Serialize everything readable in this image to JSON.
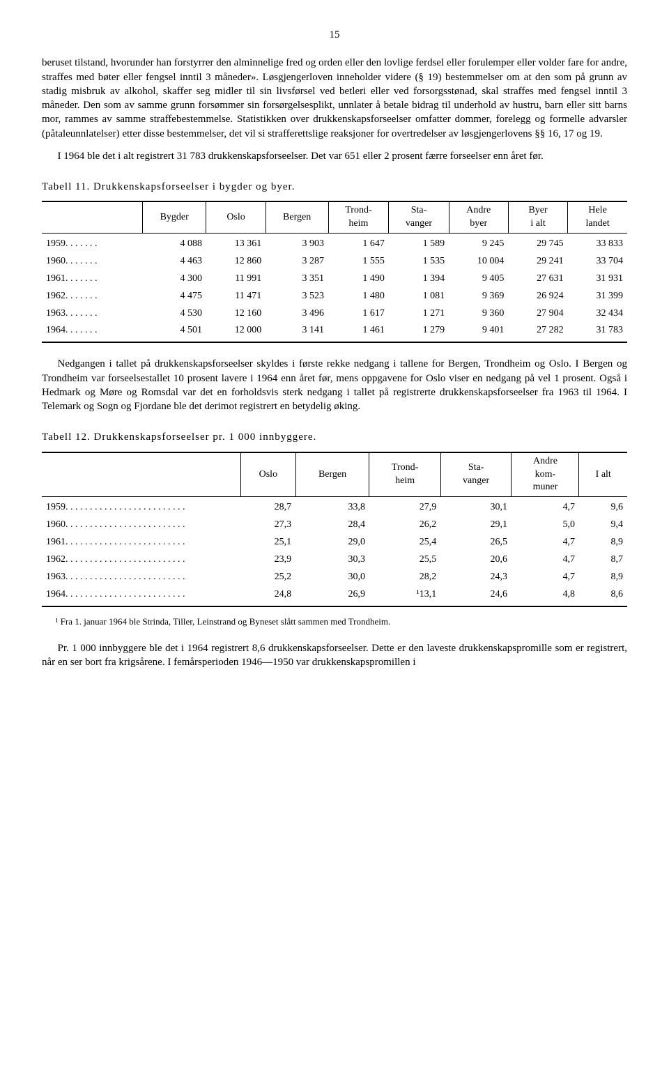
{
  "page_number": "15",
  "paragraphs": {
    "p1": "beruset tilstand, hvorunder han forstyrrer den alminnelige fred og orden eller den lovlige ferdsel eller forulemper eller volder fare for andre, straffes med bøter eller fengsel inntil 3 måneder». Løsgjengerloven inneholder videre (§ 19) bestemmelser om at den som på grunn av stadig misbruk av alkohol, skaffer seg midler til sin livsførsel ved betleri eller ved forsorgsstønad, skal straffes med fengsel inntil 3 måneder. Den som av samme grunn forsømmer sin forsørgelsesplikt, unnlater å betale bidrag til underhold av hustru, barn eller sitt barns mor, rammes av samme straffebestemmelse. Statistikken over drukkenskapsforseelser omfatter dommer, forelegg og formelle advarsler (påtaleunnlatelser) etter disse bestemmelser, det vil si strafferettslige reaksjoner for overtredelser av løsgjengerlovens §§ 16, 17 og 19.",
    "p2": "I 1964 ble det i alt registrert 31 783 drukkenskapsforseelser. Det var 651 eller 2 prosent færre forseelser enn året før.",
    "p3": "Nedgangen i tallet på drukkenskapsforseelser skyldes i første rekke nedgang i tallene for Bergen, Trondheim og Oslo. I Bergen og Trondheim var forseelsestallet 10 prosent lavere i 1964 enn året før, mens oppgavene for Oslo viser en nedgang på vel 1 prosent. Også i Hedmark og Møre og Romsdal var det en forholdsvis sterk nedgang i tallet på registrerte drukkenskapsforseelser fra 1963 til 1964. I Telemark og Sogn og Fjordane ble det derimot registrert en betydelig øking.",
    "p4": "Pr. 1 000 innbyggere ble det i 1964 registrert 8,6 drukkenskapsforseelser. Dette er den laveste drukkenskapspromille som er registrert, når en ser bort fra krigsårene. I femårsperioden 1946—1950 var drukkenskapspromillen i"
  },
  "table11": {
    "title": "Tabell 11. Drukkenskapsforseelser i bygder og byer.",
    "headers": [
      "Bygder",
      "Oslo",
      "Bergen",
      "Trond-\nheim",
      "Sta-\nvanger",
      "Andre\nbyer",
      "Byer\ni alt",
      "Hele\nlandet"
    ],
    "rows": [
      {
        "year": "1959",
        "vals": [
          "4 088",
          "13 361",
          "3 903",
          "1 647",
          "1 589",
          "9 245",
          "29 745",
          "33 833"
        ]
      },
      {
        "year": "1960",
        "vals": [
          "4 463",
          "12 860",
          "3 287",
          "1 555",
          "1 535",
          "10 004",
          "29 241",
          "33 704"
        ]
      },
      {
        "year": "1961",
        "vals": [
          "4 300",
          "11 991",
          "3 351",
          "1 490",
          "1 394",
          "9 405",
          "27 631",
          "31 931"
        ]
      },
      {
        "year": "1962",
        "vals": [
          "4 475",
          "11 471",
          "3 523",
          "1 480",
          "1 081",
          "9 369",
          "26 924",
          "31 399"
        ]
      },
      {
        "year": "1963",
        "vals": [
          "4 530",
          "12 160",
          "3 496",
          "1 617",
          "1 271",
          "9 360",
          "27 904",
          "32 434"
        ]
      },
      {
        "year": "1964",
        "vals": [
          "4 501",
          "12 000",
          "3 141",
          "1 461",
          "1 279",
          "9 401",
          "27 282",
          "31 783"
        ]
      }
    ]
  },
  "table12": {
    "title": "Tabell 12. Drukkenskapsforseelser pr. 1 000 innbyggere.",
    "headers": [
      "Oslo",
      "Bergen",
      "Trond-\nheim",
      "Sta-\nvanger",
      "Andre\nkom-\nmuner",
      "I alt"
    ],
    "rows": [
      {
        "year": "1959",
        "vals": [
          "28,7",
          "33,8",
          "27,9",
          "30,1",
          "4,7",
          "9,6"
        ]
      },
      {
        "year": "1960",
        "vals": [
          "27,3",
          "28,4",
          "26,2",
          "29,1",
          "5,0",
          "9,4"
        ]
      },
      {
        "year": "1961",
        "vals": [
          "25,1",
          "29,0",
          "25,4",
          "26,5",
          "4,7",
          "8,9"
        ]
      },
      {
        "year": "1962",
        "vals": [
          "23,9",
          "30,3",
          "25,5",
          "20,6",
          "4,7",
          "8,7"
        ]
      },
      {
        "year": "1963",
        "vals": [
          "25,2",
          "30,0",
          "28,2",
          "24,3",
          "4,7",
          "8,9"
        ]
      },
      {
        "year": "1964",
        "vals": [
          "24,8",
          "26,9",
          "¹13,1",
          "24,6",
          "4,8",
          "8,6"
        ]
      }
    ],
    "footnote": "¹ Fra 1. januar 1964 ble Strinda, Tiller, Leinstrand og Byneset slått sammen med Trondheim."
  }
}
